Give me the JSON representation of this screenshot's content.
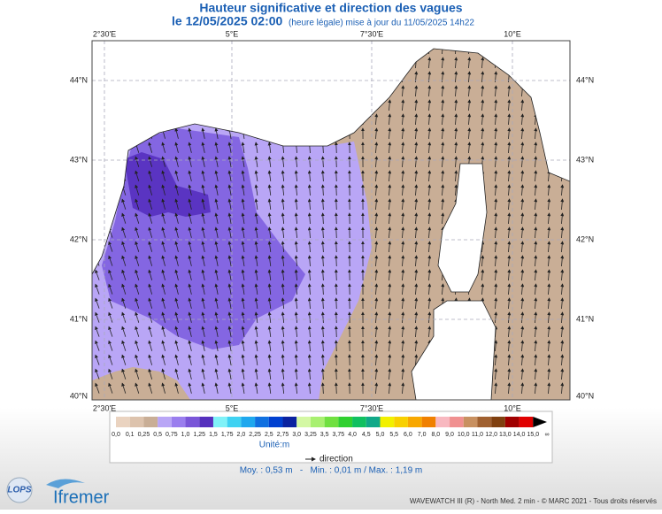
{
  "header": {
    "title": "Hauteur significative et direction des vagues",
    "date": "le 12/05/2025 02:00",
    "note": "(heure légale) mise à jour du 11/05/2025 14h22"
  },
  "map": {
    "lon_labels": [
      "2°30'E",
      "5°E",
      "7°30'E",
      "10°E"
    ],
    "lat_labels": [
      "44°N",
      "43°N",
      "42°N",
      "41°N",
      "40°N"
    ]
  },
  "legend": {
    "labels": [
      "0,0",
      "0,1",
      "0,25",
      "0,5",
      "0,75",
      "1,0",
      "1,25",
      "1,5",
      "1,75",
      "2,0",
      "2,25",
      "2,5",
      "2,75",
      "3,0",
      "3,25",
      "3,5",
      "3,75",
      "4,0",
      "4,5",
      "5,0",
      "5,5",
      "6,0",
      "7,0",
      "8,0",
      "9,0",
      "10,0",
      "11,0",
      "12,0",
      "13,0",
      "14,0",
      "15,0",
      "∞"
    ],
    "colors": [
      "#ead3c0",
      "#ddc3ad",
      "#c9ae96",
      "#b9a6f6",
      "#9a7eee",
      "#7a56d8",
      "#5530bd",
      "#80f2f8",
      "#3fd2f2",
      "#1fa8ee",
      "#1070e0",
      "#0040d0",
      "#0a22a0",
      "#d4f8a4",
      "#a8f070",
      "#70e040",
      "#30d030",
      "#10c060",
      "#10a888",
      "#f2f000",
      "#f8d000",
      "#f8a800",
      "#f08000",
      "#f8b8c0",
      "#f09090",
      "#c89060",
      "#a06030",
      "#804010",
      "#a00000",
      "#e00000",
      "#000000"
    ],
    "unit": "Unité:m",
    "direction": "direction",
    "stats": "Moy. : 0,53 m   -   Min. : 0,01 m / Max. : 1,19 m"
  },
  "footer": {
    "credit": "WAVEWATCH III (R) - North Med. 2 min - © MARC 2021 - Tous droits réservés",
    "logo_lops": "LOPS",
    "logo_ifremer": "Ifremer"
  }
}
